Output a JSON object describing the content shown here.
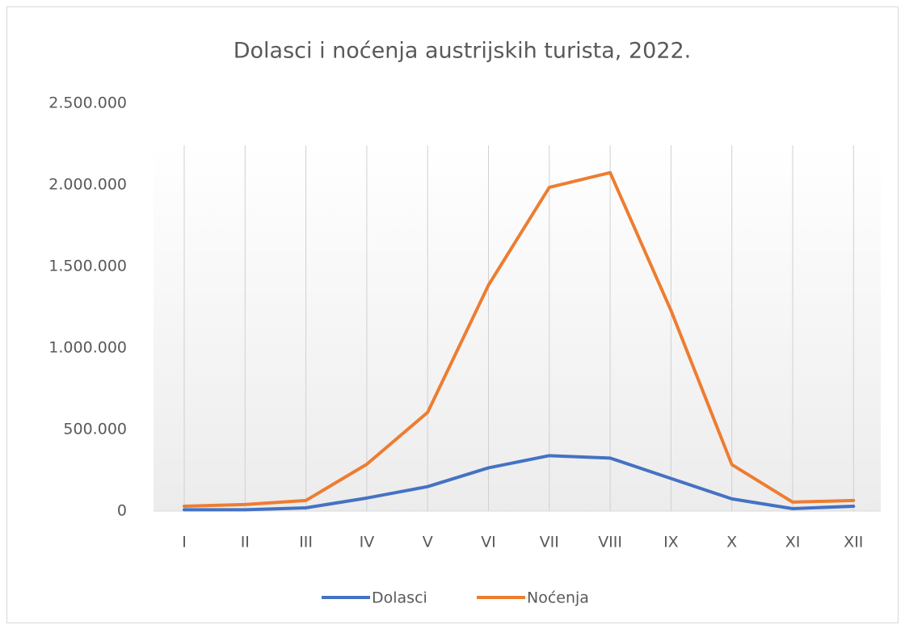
{
  "chart_data": {
    "type": "line",
    "title": "Dolasci i noćenja austrijskih turista, 2022.",
    "categories": [
      "I",
      "II",
      "III",
      "IV",
      "V",
      "VI",
      "VII",
      "VIII",
      "IX",
      "X",
      "XI",
      "XII"
    ],
    "series": [
      {
        "name": "Dolasci",
        "color": "#4472c4",
        "values": [
          8000,
          8000,
          20000,
          80000,
          150000,
          265000,
          340000,
          325000,
          200000,
          75000,
          15000,
          30000
        ]
      },
      {
        "name": "Noćenja",
        "color": "#ed7d31",
        "values": [
          30000,
          40000,
          65000,
          287000,
          605000,
          1385000,
          1985000,
          2075000,
          1230000,
          285000,
          55000,
          65000
        ]
      }
    ],
    "ylim": [
      0,
      2500000
    ],
    "yticks": [
      0,
      {
        "value": 500000,
        "label": "500.000"
      },
      {
        "value": 1000000,
        "label": "1.000.000"
      },
      {
        "value": 1500000,
        "label": "1.500.000"
      },
      {
        "value": 2000000,
        "label": "2.000.000"
      },
      {
        "value": 2500000,
        "label": "2.500.000"
      }
    ],
    "grid": {
      "x": true,
      "y": false
    },
    "legend": "bottom"
  }
}
